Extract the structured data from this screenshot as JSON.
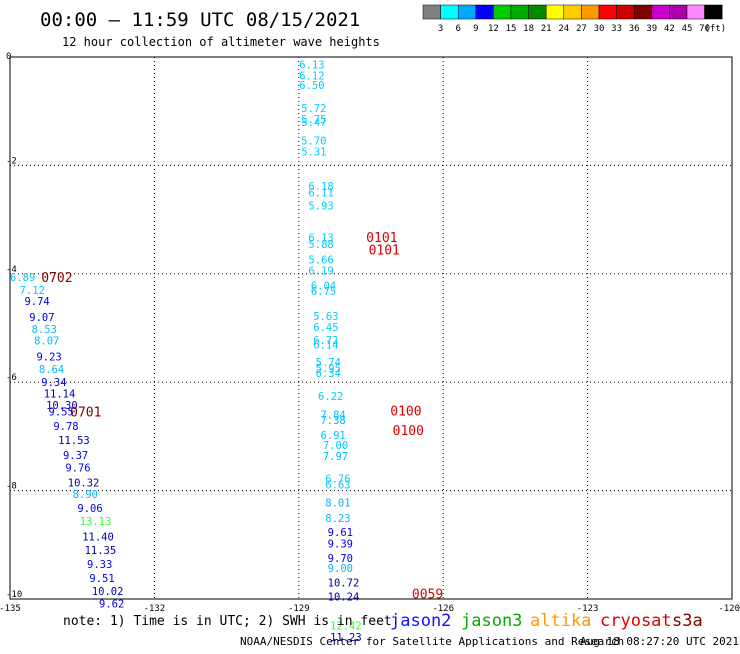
{
  "header": {
    "title": "00:00 – 11:59 UTC 08/15/2021",
    "subtitle": "12 hour collection of altimeter wave heights"
  },
  "colorbar": {
    "labels": [
      "3",
      "6",
      "9",
      "12",
      "15",
      "18",
      "21",
      "24",
      "27",
      "30",
      "33",
      "36",
      "39",
      "42",
      "45",
      "70"
    ],
    "unit": "(ft)",
    "colors": [
      "#808080",
      "#00ffff",
      "#00aaff",
      "#0000ff",
      "#00cc00",
      "#00aa00",
      "#008800",
      "#ffff00",
      "#ffcc00",
      "#ff9900",
      "#ff0000",
      "#cc0000",
      "#800000",
      "#cc00cc",
      "#aa00aa",
      "#ff88ff",
      "#000000"
    ]
  },
  "footer": {
    "note": "note: 1) Time is in UTC; 2) SWH is in feet",
    "credit": "NOAA/NESDIS Center for Satellite Applications and Research",
    "timestamp": "Aug 18 08:27:20 UTC 2021"
  },
  "legend": [
    {
      "label": "jason2",
      "color": "#1010ff"
    },
    {
      "label": "jason3",
      "color": "#00aa00"
    },
    {
      "label": "altika",
      "color": "#ff9900"
    },
    {
      "label": "cryosat",
      "color": "#dd0000"
    },
    {
      "label": "s3a",
      "color": "#800000"
    }
  ],
  "chart_data": {
    "type": "scatter",
    "title": "00:00 – 11:59 UTC 08/15/2021",
    "subtitle": "12 hour collection of altimeter wave heights",
    "xlim": [
      -135,
      -120
    ],
    "ylim": [
      -10,
      0
    ],
    "x_ticks": [
      "-135",
      "-132",
      "-129",
      "-126",
      "-123",
      "-120"
    ],
    "y_ticks": [
      "0",
      "-2",
      "-4",
      "-6",
      "-8",
      "-10"
    ],
    "grid": true,
    "series": [
      {
        "name": "jason2",
        "points": [
          {
            "x": -135.0,
            "y": -4.06,
            "label": "6.89",
            "color": "#00ccff"
          },
          {
            "x": -134.8,
            "y": -4.3,
            "label": "7.12",
            "color": "#00ccff"
          },
          {
            "x": -134.7,
            "y": -4.5,
            "label": "9.74",
            "color": "#0000ee"
          },
          {
            "x": -134.6,
            "y": -4.8,
            "label": "9.07",
            "color": "#0000ee"
          },
          {
            "x": -134.55,
            "y": -5.02,
            "label": "8.53",
            "color": "#00bbff"
          },
          {
            "x": -134.5,
            "y": -5.23,
            "label": "8.07",
            "color": "#00bbff"
          },
          {
            "x": -134.45,
            "y": -5.53,
            "label": "9.23",
            "color": "#0000ee"
          },
          {
            "x": -134.4,
            "y": -5.76,
            "label": "8.64",
            "color": "#00bbff"
          },
          {
            "x": -134.35,
            "y": -6.0,
            "label": "9.34",
            "color": "#0000ee"
          },
          {
            "x": -134.3,
            "y": -6.21,
            "label": "11.14",
            "color": "#0000aa"
          },
          {
            "x": -134.25,
            "y": -6.42,
            "label": "10.30",
            "color": "#0000aa"
          },
          {
            "x": -134.2,
            "y": -6.54,
            "label": "9.55",
            "color": "#0000ee"
          },
          {
            "x": -134.1,
            "y": -6.81,
            "label": "9.78",
            "color": "#0000ee"
          },
          {
            "x": -134.0,
            "y": -7.07,
            "label": "11.53",
            "color": "#0000aa"
          },
          {
            "x": -133.9,
            "y": -7.34,
            "label": "9.37",
            "color": "#0000ee"
          },
          {
            "x": -133.85,
            "y": -7.57,
            "label": "9.76",
            "color": "#0000ee"
          },
          {
            "x": -133.8,
            "y": -7.85,
            "label": "10.32",
            "color": "#0000aa"
          },
          {
            "x": -133.7,
            "y": -8.06,
            "label": "8.90",
            "color": "#00bbff"
          },
          {
            "x": -133.6,
            "y": -8.32,
            "label": "9.06",
            "color": "#0000ee"
          },
          {
            "x": -133.55,
            "y": -8.56,
            "label": "13.13",
            "color": "#33ff33"
          },
          {
            "x": -133.5,
            "y": -8.85,
            "label": "11.40",
            "color": "#0000aa"
          },
          {
            "x": -133.45,
            "y": -9.1,
            "label": "11.35",
            "color": "#0000aa"
          },
          {
            "x": -133.4,
            "y": -9.35,
            "label": "9.33",
            "color": "#0000ee"
          },
          {
            "x": -133.35,
            "y": -9.61,
            "label": "9.51",
            "color": "#0000ee"
          },
          {
            "x": -133.3,
            "y": -9.85,
            "label": "10.02",
            "color": "#0000aa"
          },
          {
            "x": -133.15,
            "y": -10.08,
            "label": "9.62",
            "color": "#0000ee"
          },
          {
            "x": -128.99,
            "y": -0.14,
            "label": "6.13",
            "color": "#00ccff"
          },
          {
            "x": -128.99,
            "y": -0.34,
            "label": "6.12",
            "color": "#00ccff"
          },
          {
            "x": -128.99,
            "y": -0.52,
            "label": "6.50",
            "color": "#00ccff"
          },
          {
            "x": -128.95,
            "y": -0.94,
            "label": "5.72",
            "color": "#00ccff"
          },
          {
            "x": -128.95,
            "y": -1.14,
            "label": "5.75",
            "color": "#00ccff"
          },
          {
            "x": -128.95,
            "y": -1.2,
            "label": "5.47",
            "color": "#00ccff"
          },
          {
            "x": -128.95,
            "y": -1.54,
            "label": "5.70",
            "color": "#00ccff"
          },
          {
            "x": -128.95,
            "y": -1.74,
            "label": "5.31",
            "color": "#00ccff"
          },
          {
            "x": -128.8,
            "y": -2.38,
            "label": "6.18",
            "color": "#00ccff"
          },
          {
            "x": -128.8,
            "y": -2.5,
            "label": "6.11",
            "color": "#00ccff"
          },
          {
            "x": -128.8,
            "y": -2.74,
            "label": "5.93",
            "color": "#00ccff"
          },
          {
            "x": -128.8,
            "y": -3.33,
            "label": "6.13",
            "color": "#00ccff"
          },
          {
            "x": -128.8,
            "y": -3.45,
            "label": "5.88",
            "color": "#00ccff"
          },
          {
            "x": -128.8,
            "y": -3.74,
            "label": "5.66",
            "color": "#00ccff"
          },
          {
            "x": -128.8,
            "y": -3.94,
            "label": "6.19",
            "color": "#00ccff"
          },
          {
            "x": -128.75,
            "y": -4.22,
            "label": "6.04",
            "color": "#00ccff"
          },
          {
            "x": -128.75,
            "y": -4.32,
            "label": "6.75",
            "color": "#00ccff"
          },
          {
            "x": -128.7,
            "y": -4.78,
            "label": "5.63",
            "color": "#00ccff"
          },
          {
            "x": -128.7,
            "y": -4.98,
            "label": "6.45",
            "color": "#00ccff"
          },
          {
            "x": -128.7,
            "y": -5.22,
            "label": "6.72",
            "color": "#00ccff"
          },
          {
            "x": -128.7,
            "y": -5.3,
            "label": "6.14",
            "color": "#00ccff"
          },
          {
            "x": -128.65,
            "y": -5.63,
            "label": "5.74",
            "color": "#00ccff"
          },
          {
            "x": -128.65,
            "y": -5.74,
            "label": "5.95",
            "color": "#00ccff"
          },
          {
            "x": -128.65,
            "y": -5.83,
            "label": "6.34",
            "color": "#00ccff"
          },
          {
            "x": -128.6,
            "y": -6.25,
            "label": "6.22",
            "color": "#00ccff"
          },
          {
            "x": -128.55,
            "y": -6.6,
            "label": "7.84",
            "color": "#00bbff"
          },
          {
            "x": -128.55,
            "y": -6.7,
            "label": "7.38",
            "color": "#00bbff"
          },
          {
            "x": -128.55,
            "y": -6.97,
            "label": "6.91",
            "color": "#00ccff"
          },
          {
            "x": -128.5,
            "y": -7.16,
            "label": "7.00",
            "color": "#00ccff"
          },
          {
            "x": -128.5,
            "y": -7.36,
            "label": "7.97",
            "color": "#00bbff"
          },
          {
            "x": -128.45,
            "y": -7.78,
            "label": "6.76",
            "color": "#00ccff"
          },
          {
            "x": -128.45,
            "y": -7.89,
            "label": "6.63",
            "color": "#00ccff"
          },
          {
            "x": -128.45,
            "y": -8.22,
            "label": "8.01",
            "color": "#00bbff"
          },
          {
            "x": -128.45,
            "y": -8.51,
            "label": "8.23",
            "color": "#00bbff"
          },
          {
            "x": -128.4,
            "y": -8.76,
            "label": "9.61",
            "color": "#0000ee"
          },
          {
            "x": -128.4,
            "y": -8.98,
            "label": "9.39",
            "color": "#0000ee"
          },
          {
            "x": -128.4,
            "y": -9.24,
            "label": "9.70",
            "color": "#0000ee"
          },
          {
            "x": -128.4,
            "y": -9.43,
            "label": "9.00",
            "color": "#00bbff"
          },
          {
            "x": -128.4,
            "y": -9.7,
            "label": "10.72",
            "color": "#0000aa"
          },
          {
            "x": -128.4,
            "y": -9.95,
            "label": "10.24",
            "color": "#0000aa"
          },
          {
            "x": -128.35,
            "y": -10.49,
            "label": "12.42",
            "color": "#33ff33"
          },
          {
            "x": -128.35,
            "y": -10.7,
            "label": "11.23",
            "color": "#0000aa"
          }
        ]
      }
    ],
    "annotations": [
      {
        "x": -134.35,
        "y": -4.06,
        "text": "0702",
        "color": "#800000"
      },
      {
        "x": -133.75,
        "y": -6.54,
        "text": "0701",
        "color": "#800000"
      },
      {
        "x": -127.6,
        "y": -3.32,
        "text": "0101",
        "color": "#dd0000"
      },
      {
        "x": -127.55,
        "y": -3.55,
        "text": "0101",
        "color": "#dd0000"
      },
      {
        "x": -127.1,
        "y": -6.52,
        "text": "0100",
        "color": "#dd0000"
      },
      {
        "x": -127.05,
        "y": -6.88,
        "text": "0100",
        "color": "#dd0000"
      },
      {
        "x": -126.65,
        "y": -9.9,
        "text": "0059",
        "color": "#dd0000"
      }
    ]
  }
}
